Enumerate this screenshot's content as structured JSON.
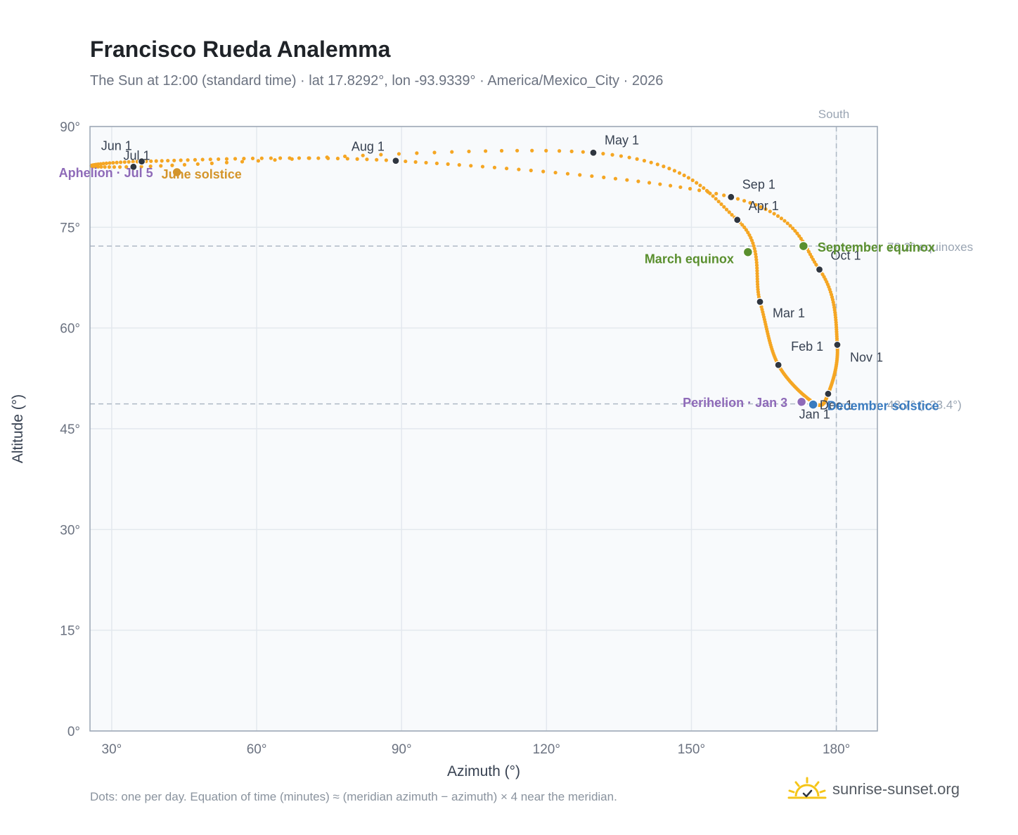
{
  "header": {
    "title": "Francisco Rueda Analemma",
    "subtitle": "The Sun at 12:00 (standard time) · lat 17.8292°, lon -93.9339° · America/Mexico_City · 2026"
  },
  "footer": {
    "note": "Dots: one per day. Equation of time (minutes) ≈ (meridian azimuth − azimuth) × 4 near the meridian.",
    "brand": "sunrise-sunset.org"
  },
  "icons": {
    "brand_logo": "sun-rising-icon"
  },
  "colors": {
    "path": "#f5a623",
    "month_point": "#2f3640",
    "equinox": "#5a8f2e",
    "perihelion": "#8e6ab8",
    "solstice_june": "#d4952a",
    "solstice_december": "#3a7bbf",
    "guide_line": "#aeb9c5",
    "plot_bg": "#f8fafc",
    "axis_text": "#6b7280"
  },
  "chart_data": {
    "type": "scatter",
    "xlabel": "Azimuth (°)",
    "ylabel": "Altitude (°)",
    "xlim": [
      25.5,
      188.5
    ],
    "ylim": [
      0,
      90
    ],
    "xticks": [
      30,
      60,
      90,
      120,
      150,
      180
    ],
    "xtick_labels": [
      "30°",
      "60°",
      "90°",
      "120°",
      "150°",
      "180°"
    ],
    "yticks": [
      0,
      15,
      30,
      45,
      60,
      75,
      90
    ],
    "ytick_labels": [
      "0°",
      "15°",
      "30°",
      "45°",
      "60°",
      "75°",
      "90°"
    ],
    "grid": true,
    "meridian": {
      "azimuth": 180,
      "label": "South"
    },
    "reference_lines": [
      {
        "altitude": 72.2,
        "label": "72.2° equinoxes"
      },
      {
        "altitude": 48.7,
        "label": "48.7° (−23.4°)"
      }
    ],
    "monthly_points": [
      {
        "label": "Jan 1",
        "az": 175.5,
        "alt": 48.8
      },
      {
        "label": "Feb 1",
        "az": 168.0,
        "alt": 54.5
      },
      {
        "label": "Mar 1",
        "az": 164.2,
        "alt": 63.9
      },
      {
        "label": "Apr 1",
        "az": 159.5,
        "alt": 76.1
      },
      {
        "label": "May 1",
        "az": 129.7,
        "alt": 86.1
      },
      {
        "label": "Jun 1",
        "az": 34.5,
        "alt": 84.0
      },
      {
        "label": "Jul 1",
        "az": 36.2,
        "alt": 84.8
      },
      {
        "label": "Aug 1",
        "az": 88.8,
        "alt": 84.9
      },
      {
        "label": "Sep 1",
        "az": 158.2,
        "alt": 79.5
      },
      {
        "label": "Oct 1",
        "az": 176.5,
        "alt": 68.7
      },
      {
        "label": "Nov 1",
        "az": 180.2,
        "alt": 57.5
      },
      {
        "label": "Dec 1",
        "az": 178.3,
        "alt": 50.2
      }
    ],
    "events": [
      {
        "label": "March equinox",
        "az": 161.7,
        "alt": 71.3,
        "kind": "equinox"
      },
      {
        "label": "September equinox",
        "az": 173.2,
        "alt": 72.2,
        "kind": "equinox"
      },
      {
        "label": "June solstice",
        "az": 43.5,
        "alt": 83.2,
        "kind": "solstice_june"
      },
      {
        "label": "December solstice",
        "az": 175.2,
        "alt": 48.6,
        "kind": "solstice_december"
      },
      {
        "label": "Perihelion · Jan 3",
        "az": 172.8,
        "alt": 49.0,
        "kind": "perihelion"
      },
      {
        "label": "Aphelion · Jul 5",
        "az": 40.0,
        "alt": 83.3,
        "kind": "aphelion"
      }
    ]
  }
}
